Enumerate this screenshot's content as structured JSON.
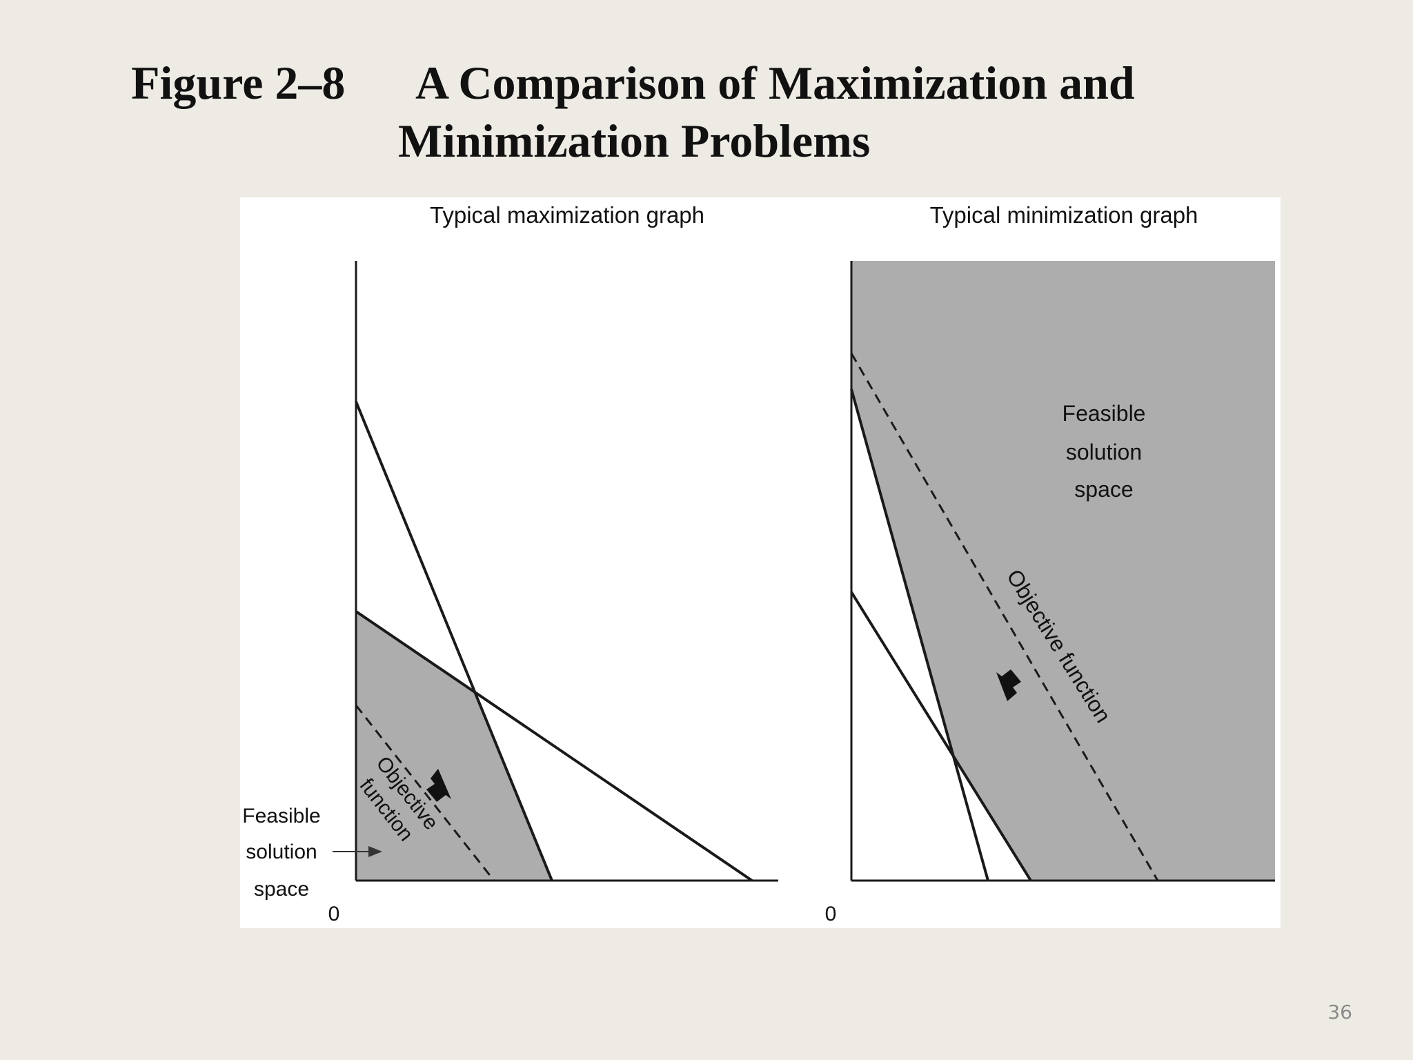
{
  "slide": {
    "figure_number": "Figure 2–8",
    "title_line1": "A Comparison of Maximization and",
    "title_line2": "Minimization Problems",
    "page_number": "36"
  },
  "max_graph": {
    "title": "Typical maximization graph",
    "origin": "0",
    "objective_label_line1": "Objective",
    "objective_label_line2": "function",
    "feasible_label_line1": "Feasible",
    "feasible_label_line2": "solution",
    "feasible_label_line3": "space"
  },
  "min_graph": {
    "title": "Typical minimization graph",
    "origin": "0",
    "objective_label": "Objective function",
    "feasible_label_line1": "Feasible",
    "feasible_label_line2": "solution",
    "feasible_label_line3": "space"
  },
  "colors": {
    "feasible_fill": "#adadad",
    "line": "#1a1a1a",
    "background": "#eeebe4",
    "figure_background": "#ffffff"
  }
}
